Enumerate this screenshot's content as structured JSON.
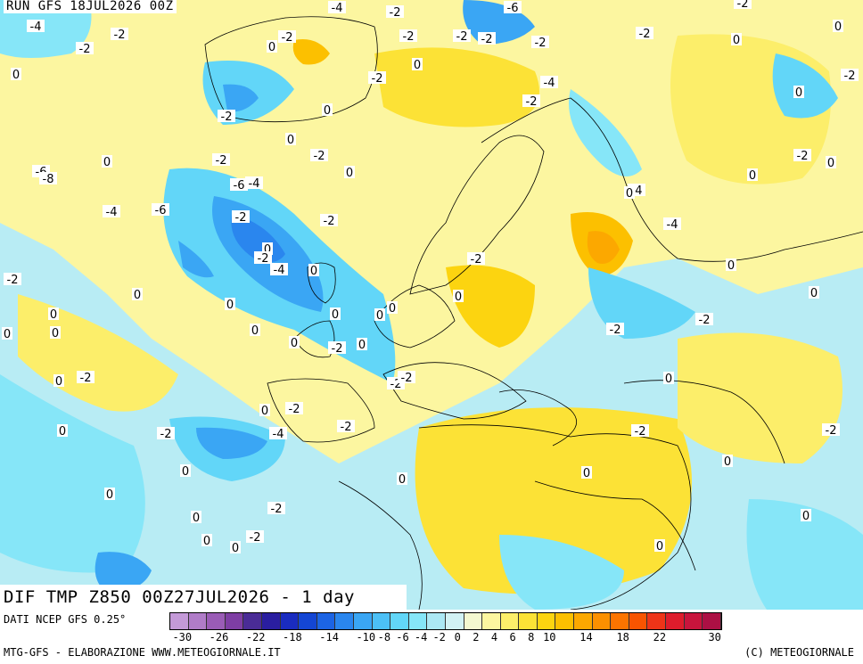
{
  "header": {
    "run_label": "RUN GFS 18JUL2026 00Z"
  },
  "title": {
    "field_label": "DIF TMP Z850 00Z27JUL2026 - 1 day"
  },
  "footer": {
    "data_source": "DATI NCEP GFS 0.25°",
    "credit_left": "MTG-GFS - ELABORAZIONE WWW.METEOGIORNALE.IT",
    "credit_right": "(C) METEOGIORNALE"
  },
  "legend": {
    "colors": [
      "#c49ad8",
      "#b07cc8",
      "#9a5cb6",
      "#7e3ea4",
      "#4a2c96",
      "#2a1ea0",
      "#1a2cc0",
      "#1446d4",
      "#1c64e4",
      "#2a86ee",
      "#3aa6f4",
      "#4cc0f6",
      "#62d6f8",
      "#86e6f8",
      "#ace8f4",
      "#d2f2f4",
      "#f4f8d0",
      "#fcf6a0",
      "#fcee6a",
      "#fce236",
      "#fcd410",
      "#fcc000",
      "#fca800",
      "#fc9000",
      "#fc7400",
      "#f85400",
      "#ee3418",
      "#de1c2c",
      "#c8143c",
      "#ac1044"
    ],
    "tick_labels": [
      "-30",
      "-26",
      "-22",
      "-18",
      "-14",
      "-10",
      "-8",
      "-6",
      "-4",
      "-2",
      "0",
      "2",
      "4",
      "6",
      "8",
      "10",
      "14",
      "18",
      "22",
      "30"
    ],
    "tick_indexes": [
      0,
      2,
      4,
      6,
      8,
      10,
      11,
      12,
      13,
      14,
      15,
      16,
      17,
      18,
      19,
      20,
      22,
      24,
      26,
      29
    ]
  },
  "map": {
    "contour_labels": [
      "-4",
      "-2",
      "-2",
      "-2",
      "-4",
      "-6",
      "-2",
      "-2",
      "0",
      "-2",
      "0",
      "-2",
      "-2",
      "-2",
      "0",
      "-2",
      "-2",
      "-4",
      "0",
      "-2",
      "-2",
      "0",
      "0",
      "-2",
      "0",
      "0",
      "-2",
      "-2",
      "0",
      "-2",
      "0",
      "-6",
      "-8",
      "-6",
      "-4",
      "-4",
      "0",
      "0",
      "0",
      "-4",
      "-6",
      "-2",
      "-2",
      "-4",
      "0",
      "-2",
      "-4",
      "0",
      "-2",
      "-2",
      "0",
      "0",
      "0",
      "0",
      "0",
      "0",
      "0",
      "0",
      "0",
      "-2",
      "0",
      "0",
      "0",
      "0",
      "-2",
      "0",
      "-2",
      "-2",
      "0",
      "-2",
      "-2",
      "0",
      "0",
      "-2",
      "-4",
      "0",
      "-2",
      "-2",
      "-2",
      "-2",
      "0",
      "0",
      "0",
      "0",
      "0",
      "-2",
      "0",
      "0",
      "0",
      "0",
      "-2",
      "0"
    ]
  }
}
